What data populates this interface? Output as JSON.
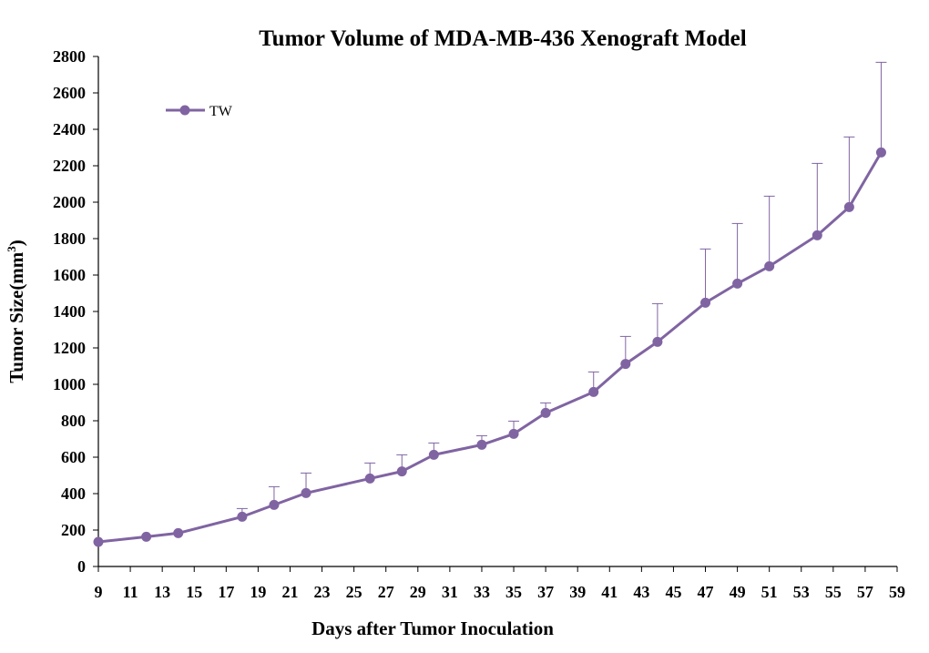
{
  "chart_data": {
    "type": "line",
    "title": "Tumor Volume of MDA-MB-436 Xenograft Model",
    "xlabel": "Days after Tumor Inoculation",
    "ylabel_main": "Tumor Size(mm",
    "ylabel_sup": "3",
    "ylabel_close": ")",
    "xlim": [
      9,
      59
    ],
    "ylim": [
      0,
      2800
    ],
    "x_ticks": [
      9,
      11,
      13,
      15,
      17,
      19,
      21,
      23,
      25,
      27,
      29,
      31,
      33,
      35,
      37,
      39,
      41,
      43,
      45,
      47,
      49,
      51,
      53,
      55,
      57,
      59
    ],
    "y_ticks": [
      0,
      200,
      400,
      600,
      800,
      1000,
      1200,
      1400,
      1600,
      1800,
      2000,
      2200,
      2400,
      2600,
      2800
    ],
    "grid": false,
    "legend_position": "top-left",
    "colors": {
      "series": "#8064a2",
      "axis": "#000000"
    },
    "series": [
      {
        "name": "TW",
        "x": [
          9,
          12,
          14,
          18,
          20,
          22,
          26,
          28,
          30,
          33,
          35,
          37,
          40,
          42,
          44,
          47,
          49,
          51,
          54,
          56,
          58
        ],
        "y": [
          135,
          163,
          183,
          273,
          338,
          403,
          483,
          522,
          613,
          668,
          728,
          843,
          958,
          1112,
          1233,
          1448,
          1553,
          1648,
          1818,
          1973,
          2273
        ],
        "error_upper": [
          135,
          163,
          183,
          318,
          438,
          513,
          568,
          613,
          678,
          718,
          798,
          898,
          1068,
          1263,
          1443,
          1743,
          1883,
          2033,
          2213,
          2358,
          2768
        ]
      }
    ]
  }
}
